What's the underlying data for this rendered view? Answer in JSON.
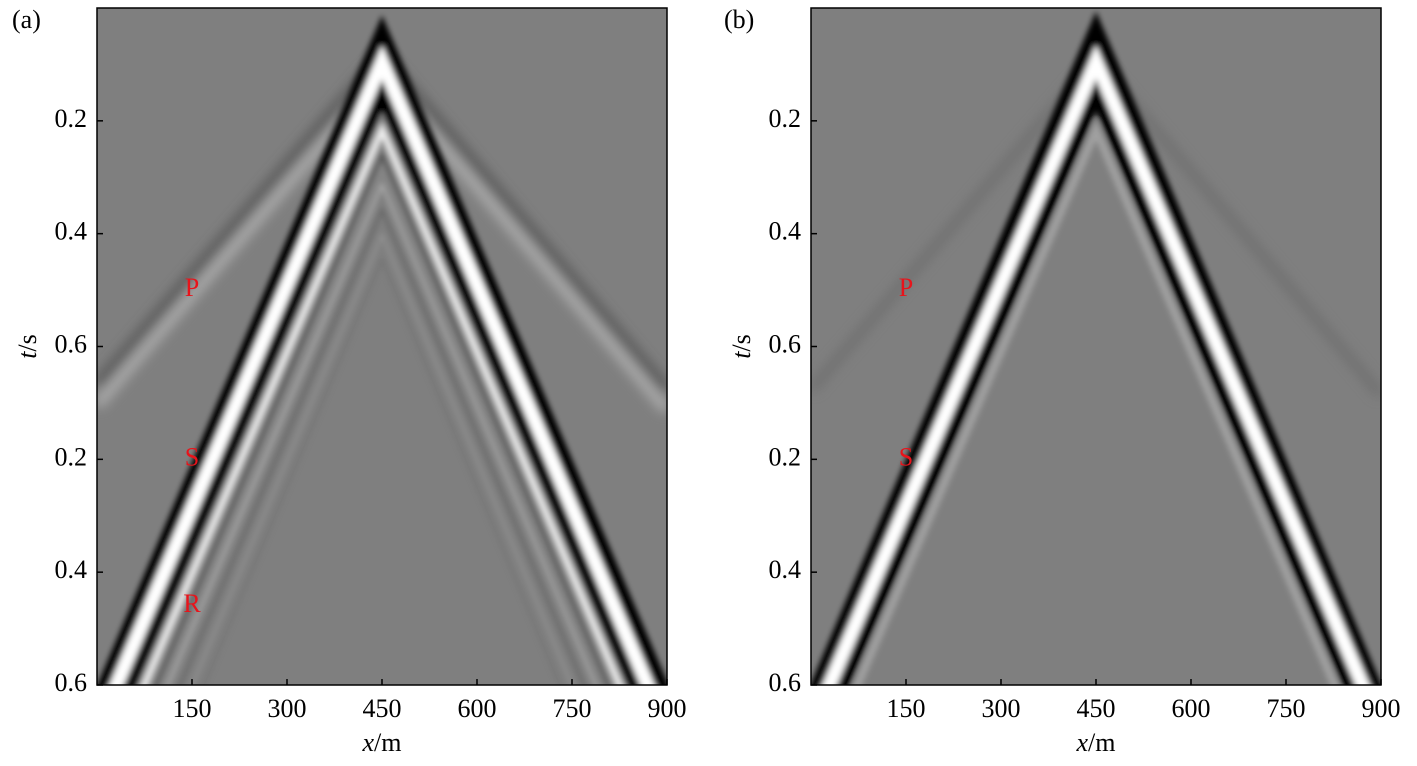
{
  "chart_data": [
    {
      "type": "seismogram",
      "panel_label": "(a)",
      "xlabel_italic": "x",
      "xlabel_unit": "/m",
      "ylabel_italic": "t",
      "ylabel_unit": "/s",
      "xlim": [
        0,
        900
      ],
      "xticks": [
        150,
        300,
        450,
        600,
        750,
        900
      ],
      "ylim": [
        0,
        1.2
      ],
      "yticks": [
        0.2,
        0.4,
        0.6,
        {
          "value": 0.8,
          "label": "0.2"
        },
        {
          "value": 1.0,
          "label": "0.4"
        },
        {
          "value": 1.2,
          "label": "0.6"
        }
      ],
      "annotations": [
        {
          "text": "P",
          "x": 150,
          "y": 0.5
        },
        {
          "text": "S",
          "x": 150,
          "y": 0.8
        },
        {
          "text": "R",
          "x": 150,
          "y": 1.06
        }
      ]
    },
    {
      "type": "seismogram",
      "panel_label": "(b)",
      "xlabel_italic": "x",
      "xlabel_unit": "/m",
      "ylabel_italic": "t",
      "ylabel_unit": "/s",
      "xlim": [
        0,
        900
      ],
      "xticks": [
        150,
        300,
        450,
        600,
        750,
        900
      ],
      "ylim": [
        0,
        1.2
      ],
      "yticks": [
        0.2,
        0.4,
        0.6,
        {
          "value": 0.8,
          "label": "0.2"
        },
        {
          "value": 1.0,
          "label": "0.4"
        },
        {
          "value": 1.2,
          "label": "0.6"
        }
      ],
      "annotations": [
        {
          "text": "P",
          "x": 150,
          "y": 0.5
        },
        {
          "text": "S",
          "x": 150,
          "y": 0.8
        }
      ]
    }
  ]
}
